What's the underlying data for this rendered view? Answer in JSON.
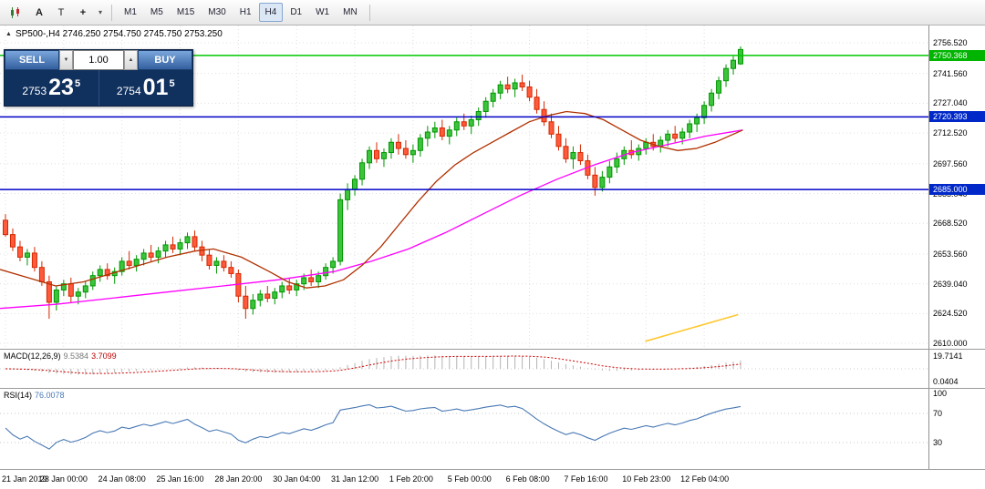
{
  "toolbar": {
    "a_label": "A",
    "t_label": "T",
    "cursor_label": "+",
    "timeframes": [
      "M1",
      "M5",
      "M15",
      "M30",
      "H1",
      "H4",
      "D1",
      "W1",
      "MN"
    ],
    "active_timeframe": "H4"
  },
  "icons": {
    "chevron_down": "▾",
    "spin_up": "▲",
    "spin_down": "▼",
    "collapse": "▲"
  },
  "chart_header": {
    "text": "SP500-,H4 2746.250 2754.750 2745.750 2753.250"
  },
  "trade_panel": {
    "sell_label": "SELL",
    "buy_label": "BUY",
    "volume": "1.00",
    "bid_prefix": "2753",
    "bid_big": "23",
    "bid_sup": "5",
    "ask_prefix": "2754",
    "ask_big": "01",
    "ask_sup": "5"
  },
  "colors": {
    "candle_up": "#009600",
    "candle_up_fill": "#3cc43c",
    "candle_down": "#d42800",
    "candle_down_fill": "#ff5a3c",
    "ma_fast": "#b03000",
    "ma_slow": "#ff00ff",
    "trendline": "#ffc832",
    "level_green": "#00c800",
    "level_blue": "#0000c8",
    "badge_green": "#00b400",
    "badge_blue": "#0028c8",
    "macd_hist": "#b4b4b4",
    "macd_signal": "#cc0000",
    "rsi_line": "#4878b4",
    "grid": "#e0e0e0"
  },
  "chart_data": {
    "type": "candlestick",
    "symbol": "SP500-",
    "timeframe": "H4",
    "ohlc_current": {
      "open": 2746.25,
      "high": 2754.75,
      "low": 2745.75,
      "close": 2753.25
    },
    "price_range": [
      2607.35,
      2764.95
    ],
    "ohlc": [
      [
        2670,
        2673,
        2662,
        2663
      ],
      [
        2663,
        2666,
        2655,
        2657
      ],
      [
        2657,
        2660,
        2650,
        2652
      ],
      [
        2652,
        2656,
        2648,
        2654
      ],
      [
        2654,
        2657,
        2645,
        2647
      ],
      [
        2647,
        2650,
        2638,
        2640
      ],
      [
        2640,
        2643,
        2622,
        2630
      ],
      [
        2630,
        2638,
        2626,
        2636
      ],
      [
        2636,
        2641,
        2633,
        2639
      ],
      [
        2639,
        2642,
        2630,
        2633
      ],
      [
        2633,
        2637,
        2629,
        2635
      ],
      [
        2635,
        2640,
        2632,
        2638
      ],
      [
        2638,
        2645,
        2636,
        2643
      ],
      [
        2643,
        2648,
        2640,
        2646
      ],
      [
        2646,
        2649,
        2641,
        2643
      ],
      [
        2643,
        2647,
        2639,
        2645
      ],
      [
        2645,
        2652,
        2643,
        2650
      ],
      [
        2650,
        2655,
        2646,
        2648
      ],
      [
        2648,
        2653,
        2645,
        2651
      ],
      [
        2651,
        2656,
        2648,
        2654
      ],
      [
        2654,
        2658,
        2650,
        2652
      ],
      [
        2652,
        2657,
        2649,
        2655
      ],
      [
        2655,
        2660,
        2652,
        2658
      ],
      [
        2658,
        2662,
        2654,
        2656
      ],
      [
        2656,
        2661,
        2653,
        2659
      ],
      [
        2659,
        2664,
        2656,
        2662
      ],
      [
        2662,
        2665,
        2655,
        2657
      ],
      [
        2657,
        2660,
        2650,
        2653
      ],
      [
        2653,
        2656,
        2646,
        2648
      ],
      [
        2648,
        2652,
        2644,
        2650
      ],
      [
        2650,
        2653,
        2645,
        2647
      ],
      [
        2647,
        2650,
        2642,
        2644
      ],
      [
        2644,
        2646,
        2630,
        2633
      ],
      [
        2633,
        2638,
        2622,
        2627
      ],
      [
        2627,
        2634,
        2624,
        2631
      ],
      [
        2631,
        2636,
        2628,
        2634
      ],
      [
        2634,
        2638,
        2630,
        2632
      ],
      [
        2632,
        2637,
        2629,
        2635
      ],
      [
        2635,
        2640,
        2632,
        2638
      ],
      [
        2638,
        2642,
        2634,
        2636
      ],
      [
        2636,
        2641,
        2633,
        2639
      ],
      [
        2639,
        2644,
        2636,
        2642
      ],
      [
        2642,
        2646,
        2638,
        2640
      ],
      [
        2640,
        2645,
        2637,
        2643
      ],
      [
        2643,
        2649,
        2641,
        2647
      ],
      [
        2647,
        2652,
        2644,
        2650
      ],
      [
        2650,
        2683,
        2648,
        2680
      ],
      [
        2680,
        2688,
        2675,
        2685
      ],
      [
        2685,
        2692,
        2682,
        2690
      ],
      [
        2690,
        2700,
        2687,
        2698
      ],
      [
        2698,
        2706,
        2695,
        2704
      ],
      [
        2704,
        2708,
        2698,
        2700
      ],
      [
        2700,
        2705,
        2696,
        2703
      ],
      [
        2703,
        2710,
        2700,
        2708
      ],
      [
        2708,
        2712,
        2702,
        2705
      ],
      [
        2705,
        2709,
        2700,
        2702
      ],
      [
        2702,
        2707,
        2698,
        2704
      ],
      [
        2704,
        2712,
        2701,
        2710
      ],
      [
        2710,
        2716,
        2706,
        2713
      ],
      [
        2713,
        2718,
        2710,
        2715
      ],
      [
        2715,
        2719,
        2709,
        2711
      ],
      [
        2711,
        2716,
        2707,
        2714
      ],
      [
        2714,
        2720,
        2711,
        2718
      ],
      [
        2718,
        2722,
        2714,
        2716
      ],
      [
        2716,
        2721,
        2712,
        2719
      ],
      [
        2719,
        2725,
        2716,
        2723
      ],
      [
        2723,
        2730,
        2720,
        2728
      ],
      [
        2728,
        2734,
        2725,
        2732
      ],
      [
        2732,
        2738,
        2729,
        2736
      ],
      [
        2736,
        2740,
        2732,
        2734
      ],
      [
        2734,
        2739,
        2730,
        2737
      ],
      [
        2737,
        2741,
        2733,
        2735
      ],
      [
        2735,
        2738,
        2728,
        2730
      ],
      [
        2730,
        2734,
        2722,
        2724
      ],
      [
        2724,
        2728,
        2716,
        2718
      ],
      [
        2718,
        2722,
        2710,
        2712
      ],
      [
        2712,
        2716,
        2704,
        2706
      ],
      [
        2706,
        2710,
        2698,
        2700
      ],
      [
        2700,
        2706,
        2695,
        2703
      ],
      [
        2703,
        2707,
        2697,
        2699
      ],
      [
        2699,
        2702,
        2690,
        2692
      ],
      [
        2692,
        2696,
        2682,
        2686
      ],
      [
        2686,
        2694,
        2684,
        2691
      ],
      [
        2691,
        2699,
        2688,
        2696
      ],
      [
        2696,
        2703,
        2693,
        2700
      ],
      [
        2700,
        2706,
        2697,
        2704
      ],
      [
        2704,
        2709,
        2700,
        2702
      ],
      [
        2702,
        2707,
        2699,
        2705
      ],
      [
        2705,
        2710,
        2702,
        2708
      ],
      [
        2708,
        2712,
        2704,
        2706
      ],
      [
        2706,
        2711,
        2703,
        2709
      ],
      [
        2709,
        2714,
        2706,
        2712
      ],
      [
        2712,
        2716,
        2708,
        2710
      ],
      [
        2710,
        2715,
        2707,
        2713
      ],
      [
        2713,
        2719,
        2710,
        2717
      ],
      [
        2717,
        2722,
        2713,
        2720
      ],
      [
        2720,
        2728,
        2717,
        2726
      ],
      [
        2726,
        2734,
        2723,
        2732
      ],
      [
        2732,
        2740,
        2729,
        2738
      ],
      [
        2738,
        2746,
        2735,
        2744
      ],
      [
        2744,
        2750,
        2741,
        2748
      ],
      [
        2746.25,
        2754.75,
        2745.75,
        2753.25
      ]
    ],
    "time_labels": [
      "21 Jan 2019",
      "23 Jan 00:00",
      "24 Jan 08:00",
      "25 Jan 16:00",
      "28 Jan 20:00",
      "30 Jan 04:00",
      "31 Jan 12:00",
      "1 Feb 20:00",
      "5 Feb 00:00",
      "6 Feb 08:00",
      "7 Feb 16:00",
      "10 Feb 23:00",
      "12 Feb 04:00"
    ],
    "price_axis": [
      {
        "text": "2756.520",
        "price": 2756.52,
        "type": "plain"
      },
      {
        "text": "2750.368",
        "price": 2750.368,
        "type": "green"
      },
      {
        "text": "2741.560",
        "price": 2741.56,
        "type": "plain"
      },
      {
        "text": "2727.040",
        "price": 2727.04,
        "type": "plain"
      },
      {
        "text": "2720.393",
        "price": 2720.393,
        "type": "blue"
      },
      {
        "text": "2712.520",
        "price": 2712.52,
        "type": "plain"
      },
      {
        "text": "2697.560",
        "price": 2697.56,
        "type": "plain"
      },
      {
        "text": "2685.000",
        "price": 2685.0,
        "type": "blue"
      },
      {
        "text": "2683.040",
        "price": 2683.04,
        "type": "plain"
      },
      {
        "text": "2668.520",
        "price": 2668.52,
        "type": "plain"
      },
      {
        "text": "2653.560",
        "price": 2653.56,
        "type": "plain"
      },
      {
        "text": "2639.040",
        "price": 2639.04,
        "type": "plain"
      },
      {
        "text": "2624.520",
        "price": 2624.52,
        "type": "plain"
      },
      {
        "text": "2610.000",
        "price": 2610.0,
        "type": "plain"
      }
    ],
    "ma_fast": {
      "points": [
        [
          0.0,
          2646
        ],
        [
          0.03,
          2642
        ],
        [
          0.06,
          2638
        ],
        [
          0.09,
          2640
        ],
        [
          0.12,
          2644
        ],
        [
          0.15,
          2648
        ],
        [
          0.18,
          2652
        ],
        [
          0.21,
          2655
        ],
        [
          0.23,
          2656
        ],
        [
          0.26,
          2652
        ],
        [
          0.29,
          2645
        ],
        [
          0.31,
          2640
        ],
        [
          0.33,
          2637
        ],
        [
          0.35,
          2638
        ],
        [
          0.37,
          2641
        ],
        [
          0.39,
          2648
        ],
        [
          0.41,
          2657
        ],
        [
          0.43,
          2668
        ],
        [
          0.45,
          2679
        ],
        [
          0.47,
          2689
        ],
        [
          0.49,
          2697
        ],
        [
          0.51,
          2703
        ],
        [
          0.53,
          2708
        ],
        [
          0.55,
          2713
        ],
        [
          0.57,
          2718
        ],
        [
          0.59,
          2721
        ],
        [
          0.61,
          2723
        ],
        [
          0.63,
          2722
        ],
        [
          0.65,
          2719
        ],
        [
          0.67,
          2714
        ],
        [
          0.69,
          2709
        ],
        [
          0.71,
          2706
        ],
        [
          0.73,
          2704
        ],
        [
          0.75,
          2705
        ],
        [
          0.77,
          2708
        ],
        [
          0.79,
          2712
        ],
        [
          0.8,
          2714
        ]
      ]
    },
    "ma_slow": {
      "points": [
        [
          0.0,
          2627
        ],
        [
          0.06,
          2629
        ],
        [
          0.12,
          2632
        ],
        [
          0.18,
          2635
        ],
        [
          0.24,
          2638
        ],
        [
          0.3,
          2641
        ],
        [
          0.36,
          2645
        ],
        [
          0.4,
          2650
        ],
        [
          0.44,
          2656
        ],
        [
          0.48,
          2664
        ],
        [
          0.52,
          2673
        ],
        [
          0.56,
          2682
        ],
        [
          0.6,
          2690
        ],
        [
          0.64,
          2697
        ],
        [
          0.68,
          2703
        ],
        [
          0.72,
          2707
        ],
        [
          0.76,
          2711
        ],
        [
          0.8,
          2714
        ]
      ]
    },
    "trendline": {
      "points": [
        [
          0.695,
          2611
        ],
        [
          0.795,
          2624
        ]
      ]
    },
    "indicators": {
      "macd": {
        "name": "MACD(12,26,9)",
        "value": "9.5384",
        "signal": "3.7099",
        "axis_top": "19.7141",
        "axis_bottom": "0.0404",
        "params": [
          12,
          26,
          9
        ]
      },
      "rsi": {
        "name": "RSI(14)",
        "value": "76.0078",
        "period": 14,
        "levels": [
          100,
          70,
          30
        ]
      }
    }
  }
}
